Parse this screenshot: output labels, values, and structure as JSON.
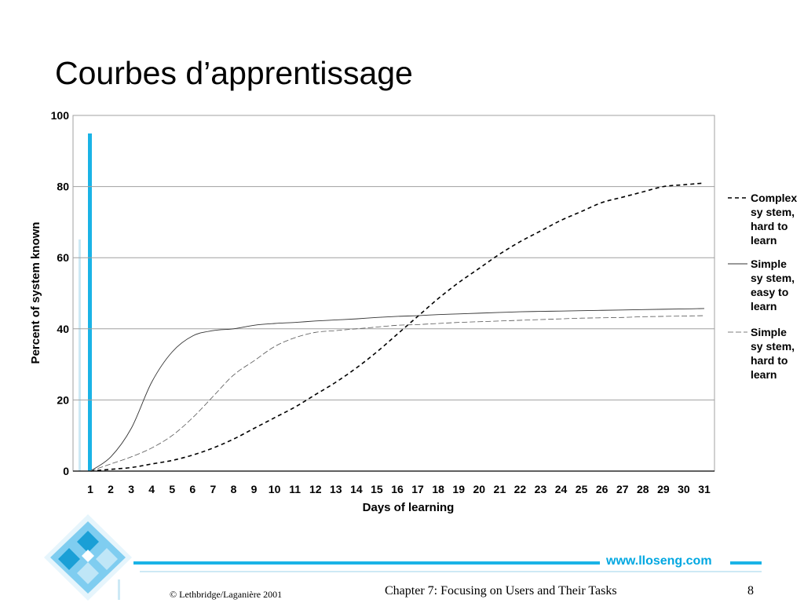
{
  "slide": {
    "title": "Courbes d’apprentissage",
    "site_url": "www.lloseng.com",
    "footer_copyright": "© Lethbridge/Laganière 2001",
    "footer_chapter": "Chapter 7: Focusing on Users and Their Tasks",
    "page_number": "8"
  },
  "colors": {
    "accent": "#1ab3e6",
    "gridline": "#a0a0a0",
    "plot_border": "#a0a0a0"
  },
  "chart_data": {
    "type": "line",
    "title": "",
    "xlabel": "Days of learning",
    "ylabel": "Percent of system known",
    "x": [
      1,
      2,
      3,
      4,
      5,
      6,
      7,
      8,
      9,
      10,
      11,
      12,
      13,
      14,
      15,
      16,
      17,
      18,
      19,
      20,
      21,
      22,
      23,
      24,
      25,
      26,
      27,
      28,
      29,
      30,
      31
    ],
    "xlim": [
      1,
      31
    ],
    "ylim": [
      0,
      100
    ],
    "y_ticks": [
      0,
      20,
      40,
      60,
      80,
      100
    ],
    "grid": true,
    "legend_position": "right",
    "series": [
      {
        "name": "Complex system, hard to learn",
        "legend_lines": [
          "Complex",
          "sy stem,",
          "hard to",
          "learn"
        ],
        "style": "dashed-bold",
        "values": [
          0,
          0.5,
          1,
          2,
          3,
          4.5,
          6.5,
          9,
          12,
          15,
          18,
          21.5,
          25,
          29,
          33.5,
          38.5,
          43.5,
          48.5,
          53,
          57,
          61,
          64.5,
          67.5,
          70.5,
          73,
          75.5,
          77,
          78.5,
          80,
          80.5,
          81
        ]
      },
      {
        "name": "Simple system, easy to learn",
        "legend_lines": [
          "Simple",
          "sy stem,",
          "easy  to",
          "learn"
        ],
        "style": "solid",
        "values": [
          0,
          4,
          12,
          25,
          33.5,
          38,
          39.5,
          40,
          41,
          41.5,
          41.8,
          42.2,
          42.5,
          42.8,
          43.2,
          43.5,
          43.7,
          44,
          44.2,
          44.4,
          44.6,
          44.8,
          44.9,
          45,
          45.1,
          45.2,
          45.3,
          45.4,
          45.5,
          45.6,
          45.7
        ]
      },
      {
        "name": "Simple system, hard to learn",
        "legend_lines": [
          "Simple",
          "sy stem,",
          "hard to",
          "learn"
        ],
        "style": "dashed-thin",
        "values": [
          0,
          2,
          4,
          6.5,
          10,
          15,
          21,
          27,
          31,
          35,
          37.5,
          39,
          39.5,
          40,
          40.5,
          41,
          41.2,
          41.5,
          41.8,
          42,
          42.2,
          42.4,
          42.6,
          42.8,
          43,
          43.1,
          43.2,
          43.4,
          43.5,
          43.6,
          43.7
        ]
      }
    ]
  }
}
